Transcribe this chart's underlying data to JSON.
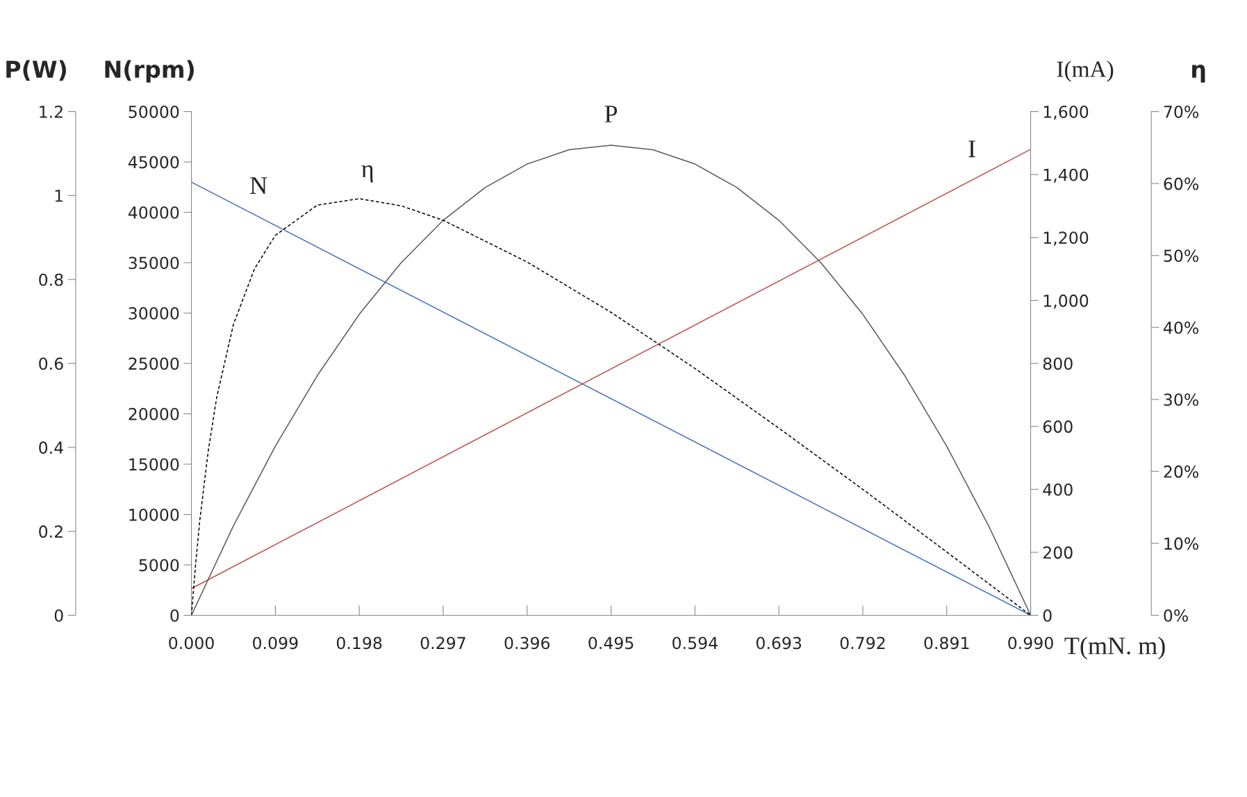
{
  "chart_data": [
    {
      "type": "line",
      "xlabel": "T(mN. m)",
      "ylabel": "N(rpm)",
      "y2label": "I(mA)",
      "xlim": [
        0,
        0.99
      ],
      "xticks": [
        {
          "value": 0,
          "label": "0.000"
        },
        0.099,
        0.198,
        0.297,
        0.396,
        0.495,
        0.594,
        0.693,
        0.792,
        0.891,
        {
          "value": 0.99,
          "label": "0.990"
        }
      ],
      "ylim": [
        0,
        50000
      ],
      "yticks": [
        0,
        5000,
        10000,
        15000,
        20000,
        25000,
        30000,
        35000,
        40000,
        45000,
        50000
      ],
      "y2lim": [
        0,
        1600
      ],
      "y2ticks": [
        0,
        200,
        400,
        600,
        800,
        {
          "value": 1000,
          "label": "1,000"
        },
        {
          "value": 1200,
          "label": "1,200"
        },
        {
          "value": 1400,
          "label": "1,400"
        },
        {
          "value": 1600,
          "label": "1,600"
        }
      ],
      "grid": false,
      "legend": false,
      "marker": "none",
      "series": [
        {
          "name": "N",
          "color": "#4472c4",
          "line_style": "solid",
          "x": [
            0,
            0.99
          ],
          "values": [
            43000,
            0
          ]
        },
        {
          "name": "I",
          "axis": "y2",
          "color": "#c0504d",
          "line_style": "solid",
          "x": [
            0,
            0.99
          ],
          "values": [
            85,
            1480
          ]
        }
      ]
    },
    {
      "type": "line",
      "ylabel": "P(W)",
      "y2label": "η",
      "tick_labels": "y",
      "xlim": [
        0,
        0.99
      ],
      "ylim": [
        0,
        1.2
      ],
      "yticks": [
        0,
        0.2,
        0.4,
        0.6,
        0.8,
        1,
        1.2
      ],
      "y2lim": [
        0,
        70
      ],
      "y2ticks": [
        {
          "value": 0,
          "label": "0%"
        },
        {
          "value": 10,
          "label": "10%"
        },
        {
          "value": 20,
          "label": "20%"
        },
        {
          "value": 30,
          "label": "30%"
        },
        {
          "value": 40,
          "label": "40%"
        },
        {
          "value": 50,
          "label": "50%"
        },
        {
          "value": 60,
          "label": "60%"
        },
        {
          "value": 70,
          "label": "70%"
        }
      ],
      "grid": false,
      "legend": false,
      "marker": "none",
      "series": [
        {
          "name": "η",
          "axis": "y2",
          "color": "#000000",
          "line_style": "dashed",
          "x": [
            0,
            0.00495,
            0.0099,
            0.0198,
            0.0297,
            0.0495,
            0.07425,
            0.099,
            0.1485,
            0.198,
            0.2475,
            0.297,
            0.396,
            0.495,
            0.594,
            0.693,
            0.792,
            0.891,
            0.99
          ],
          "values": [
            0,
            7.1,
            13.2,
            22.8,
            30.2,
            40.4,
            48.1,
            52.8,
            57.0,
            57.9,
            56.9,
            54.9,
            49.1,
            42.1,
            34.3,
            26.0,
            17.5,
            8.8,
            0
          ]
        },
        {
          "name": "P",
          "color": "#595959",
          "line_style": "solid",
          "x": [
            0,
            0.0495,
            0.099,
            0.1485,
            0.198,
            0.2475,
            0.297,
            0.3465,
            0.396,
            0.4455,
            0.495,
            0.5445,
            0.594,
            0.6435,
            0.693,
            0.7425,
            0.792,
            0.8415,
            0.891,
            0.9405,
            0.99
          ],
          "values": [
            0,
            0.213,
            0.403,
            0.571,
            0.717,
            0.84,
            0.941,
            1.019,
            1.075,
            1.109,
            1.12,
            1.109,
            1.075,
            1.019,
            0.941,
            0.84,
            0.717,
            0.571,
            0.403,
            0.213,
            0
          ]
        }
      ]
    }
  ]
}
